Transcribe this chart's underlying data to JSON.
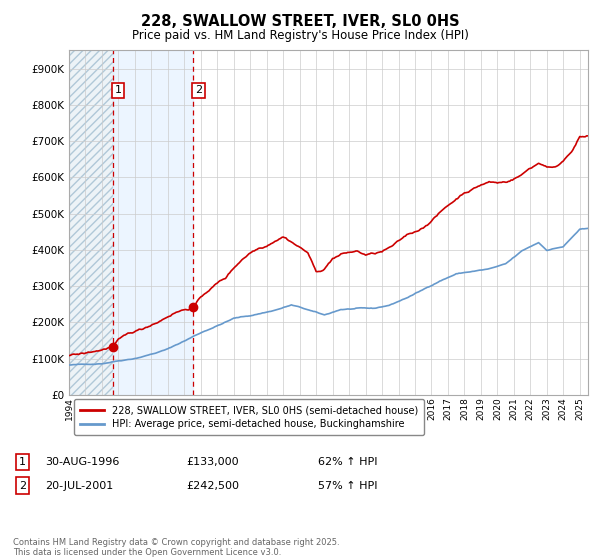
{
  "title": "228, SWALLOW STREET, IVER, SL0 0HS",
  "subtitle": "Price paid vs. HM Land Registry's House Price Index (HPI)",
  "legend_line1": "228, SWALLOW STREET, IVER, SL0 0HS (semi-detached house)",
  "legend_line2": "HPI: Average price, semi-detached house, Buckinghamshire",
  "sale1_label": "1",
  "sale1_date": "30-AUG-1996",
  "sale1_price": "£133,000",
  "sale1_hpi": "62% ↑ HPI",
  "sale1_year": 1996.67,
  "sale1_value": 133000,
  "sale2_label": "2",
  "sale2_date": "20-JUL-2001",
  "sale2_price": "£242,500",
  "sale2_hpi": "57% ↑ HPI",
  "sale2_year": 2001.55,
  "sale2_value": 242500,
  "copyright": "Contains HM Land Registry data © Crown copyright and database right 2025.\nThis data is licensed under the Open Government Licence v3.0.",
  "red_color": "#cc0000",
  "blue_color": "#6699cc",
  "shade_color": "#ddeeff",
  "hatch_color": "#c8d8e8",
  "background_color": "#ffffff",
  "grid_color": "#cccccc",
  "ylim": [
    0,
    950000
  ],
  "xlim_left": 1994.0,
  "xlim_right": 2025.5
}
